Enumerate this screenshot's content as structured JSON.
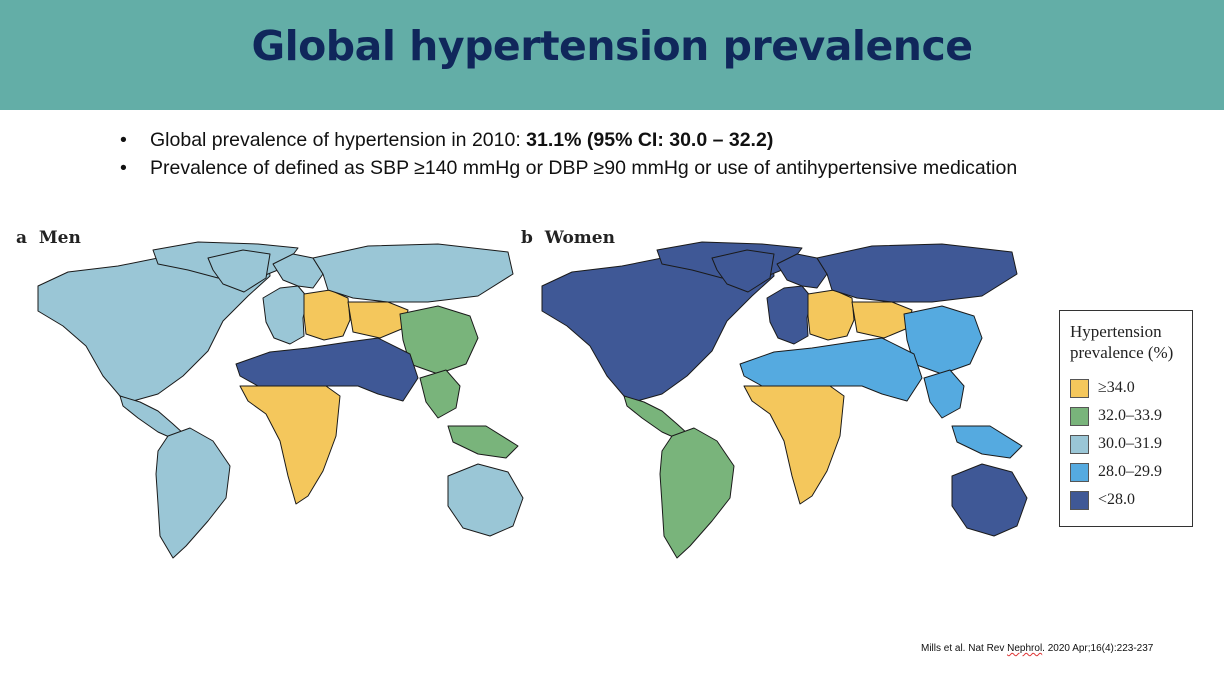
{
  "title": "Global hypertension prevalence",
  "bullets": [
    {
      "text": "Global prevalence of hypertension in 2010: ",
      "bold": "31.1% (95% CI: 30.0 – 32.2)"
    },
    {
      "text": "Prevalence of defined as SBP ≥140 mmHg or DBP ≥90 mmHg or use of antihypertensive medication",
      "bold": ""
    }
  ],
  "bullet_glyph": "•",
  "panels": [
    {
      "letter": "a",
      "label": "Men"
    },
    {
      "letter": "b",
      "label": "Women"
    }
  ],
  "legend": {
    "title_line1": "Hypertension",
    "title_line2": "prevalence (%)",
    "items": [
      {
        "label": "≥34.0",
        "color": "#f4c75c"
      },
      {
        "label": "32.0–33.9",
        "color": "#79b47b"
      },
      {
        "label": "30.0–31.9",
        "color": "#9ac6d6"
      },
      {
        "label": "28.0–29.9",
        "color": "#55aae0"
      },
      {
        "label": "<28.0",
        "color": "#3f5896"
      }
    ]
  },
  "map_data": {
    "men": {
      "north_america": "30.0–31.9",
      "central_america": "30.0–31.9",
      "south_america": "30.0–31.9",
      "europe_west": "30.0–31.9",
      "europe_east": "≥34.0",
      "russia": "30.0–31.9",
      "central_asia": "≥34.0",
      "china": "32.0–33.9",
      "north_africa_middle_east_south_asia": "<28.0",
      "sub_saharan_africa": "≥34.0",
      "southeast_asia": "32.0–33.9",
      "australia": "30.0–31.9"
    },
    "women": {
      "north_america": "<28.0",
      "central_america": "32.0–33.9",
      "south_america": "32.0–33.9",
      "europe_west": "<28.0",
      "europe_east": "≥34.0",
      "russia": "<28.0",
      "central_asia": "≥34.0",
      "china": "28.0–29.9",
      "north_africa_middle_east_south_asia": "28.0–29.9",
      "sub_saharan_africa": "≥34.0",
      "southeast_asia": "28.0–29.9",
      "australia": "<28.0"
    }
  },
  "citation": {
    "pre": "Mills et al. Nat Rev ",
    "underlined": "Nephrol",
    "post": ". 2020 Apr;16(4):223-237"
  }
}
